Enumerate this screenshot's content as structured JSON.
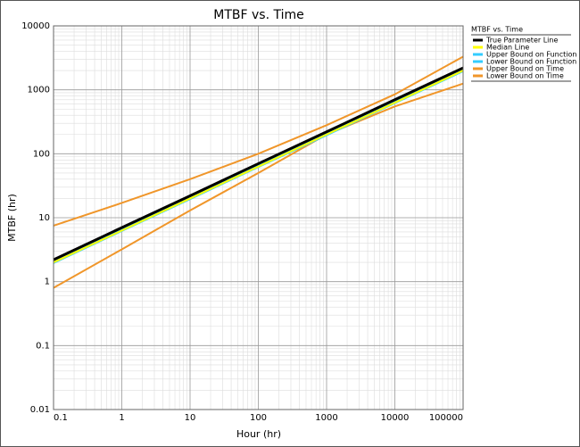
{
  "chart_data": {
    "type": "line",
    "title": "MTBF vs. Time",
    "x_label": "Hour (hr)",
    "y_label": "MTBF (hr)",
    "x": [
      0.1,
      1,
      10,
      100,
      1000,
      10000,
      100000
    ],
    "series": [
      {
        "name": "True Parameter Line",
        "color": "#000000",
        "width": 3,
        "values": [
          2.2,
          7,
          22,
          70,
          220,
          700,
          2200
        ]
      },
      {
        "name": "Median Line",
        "color": "#ffff00",
        "width": 2,
        "values": [
          2.0,
          6.3,
          20,
          63,
          200,
          630,
          2000
        ]
      },
      {
        "name": "Upper Bound on Function",
        "color": "#33ccff",
        "width": 2,
        "values": [
          2.05,
          6.5,
          20.5,
          65,
          205,
          650,
          2050
        ]
      },
      {
        "name": "Lower Bound on Function",
        "color": "#33ccff",
        "width": 2,
        "values": [
          1.95,
          6.2,
          19.5,
          62,
          195,
          620,
          1950
        ]
      },
      {
        "name": "Upper Bound on Time",
        "color": "#f0962a",
        "width": 2,
        "values": [
          7.5,
          17,
          40,
          100,
          280,
          850,
          3300
        ]
      },
      {
        "name": "Lower Bound on Time",
        "color": "#f0962a",
        "width": 2,
        "values": [
          0.8,
          3.2,
          13,
          50,
          200,
          550,
          1250
        ]
      }
    ],
    "xlim": [
      0.1,
      100000
    ],
    "ylim": [
      0.01,
      10000
    ],
    "xticks": [
      0.1,
      1,
      10,
      100,
      1000,
      10000,
      100000
    ],
    "yticks": [
      0.01,
      0.1,
      1,
      10,
      100,
      1000,
      10000
    ],
    "log_x": true,
    "log_y": true,
    "grid": true,
    "minor_grid": true,
    "legend_title": "MTBF vs. Time",
    "legend": "right"
  }
}
